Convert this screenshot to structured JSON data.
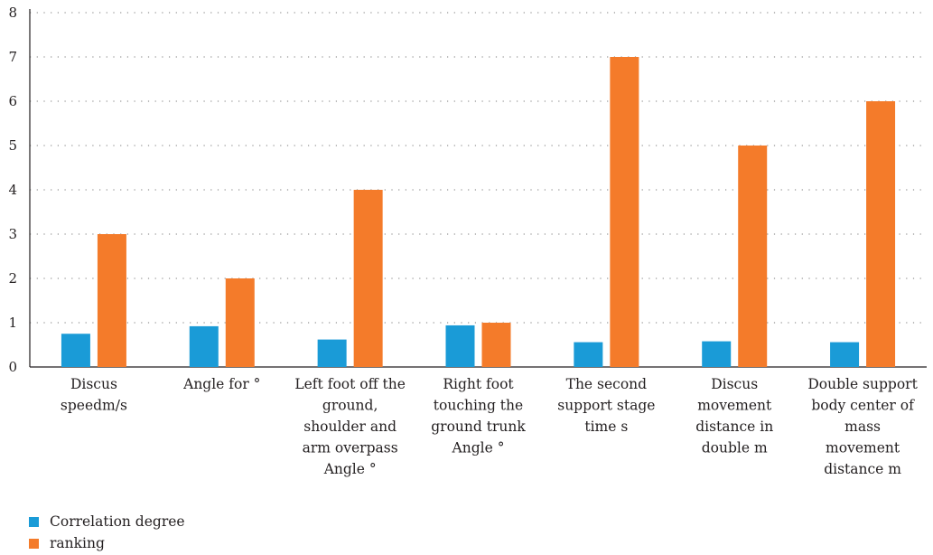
{
  "chart_data": {
    "type": "bar",
    "categories": [
      [
        "Discus",
        "speedm/s"
      ],
      [
        "Angle for °"
      ],
      [
        "Left foot off the",
        "ground,",
        "shoulder and",
        "arm overpass",
        "Angle °"
      ],
      [
        "Right foot",
        "touching the",
        "ground trunk",
        "Angle °"
      ],
      [
        "The second",
        "support stage",
        "time s"
      ],
      [
        "Discus",
        "movement",
        "distance in",
        "double m"
      ],
      [
        "Double support",
        "body center of",
        "mass",
        "movement",
        "distance m"
      ]
    ],
    "series": [
      {
        "name": "Correlation degree",
        "color": "#1a9bd7",
        "values": [
          0.75,
          0.92,
          0.62,
          0.94,
          0.56,
          0.58,
          0.56
        ]
      },
      {
        "name": "ranking",
        "color": "#f47b2a",
        "values": [
          3,
          2,
          4,
          1,
          7,
          5,
          6
        ]
      }
    ],
    "y_ticks": [
      "0",
      "1",
      "2",
      "3",
      "4",
      "5",
      "6",
      "7",
      "8"
    ],
    "ylim": [
      0,
      8
    ],
    "grid": "dotted horizontal",
    "legend_position": "bottom-left"
  }
}
